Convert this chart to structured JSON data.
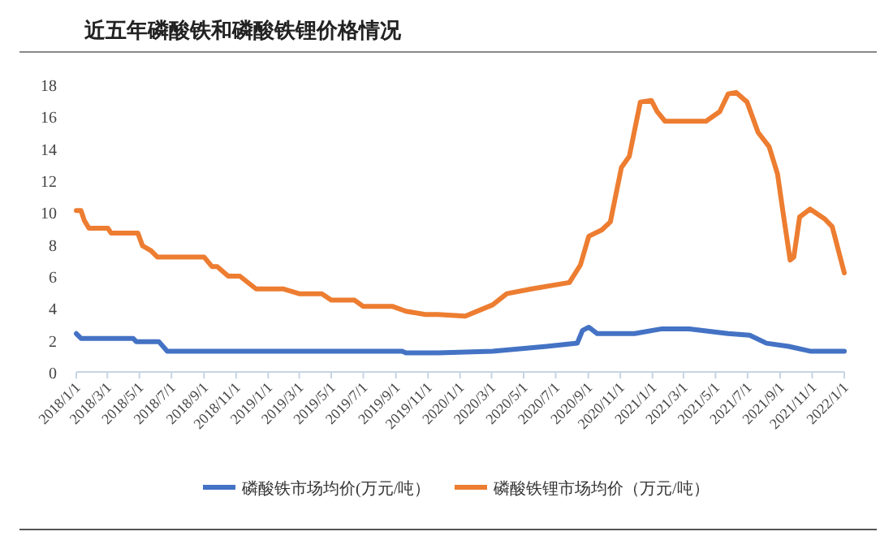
{
  "chart_data": {
    "type": "line",
    "title": "近五年磷酸铁和磷酸铁锂价格情况",
    "legend": "bottom",
    "xlim": [
      "2018-01-01",
      "2022-01-01"
    ],
    "ylim": [
      0,
      18
    ],
    "yticks": [
      0,
      2,
      4,
      6,
      8,
      10,
      12,
      14,
      16,
      18
    ],
    "xticks": [
      {
        "value": "2018-01-01",
        "label": "2018/1/1"
      },
      {
        "value": "2018-03-01",
        "label": "2018/3/1"
      },
      {
        "value": "2018-05-01",
        "label": "2018/5/1"
      },
      {
        "value": "2018-07-01",
        "label": "2018/7/1"
      },
      {
        "value": "2018-09-01",
        "label": "2018/9/1"
      },
      {
        "value": "2018-11-01",
        "label": "2018/11/1"
      },
      {
        "value": "2019-01-01",
        "label": "2019/1/1"
      },
      {
        "value": "2019-03-01",
        "label": "2019/3/1"
      },
      {
        "value": "2019-05-01",
        "label": "2019/5/1"
      },
      {
        "value": "2019-07-01",
        "label": "2019/7/1"
      },
      {
        "value": "2019-09-01",
        "label": "2019/9/1"
      },
      {
        "value": "2019-11-01",
        "label": "2019/11/1"
      },
      {
        "value": "2020-01-01",
        "label": "2020/1/1"
      },
      {
        "value": "2020-03-01",
        "label": "2020/3/1"
      },
      {
        "value": "2020-05-01",
        "label": "2020/5/1"
      },
      {
        "value": "2020-07-01",
        "label": "2020/7/1"
      },
      {
        "value": "2020-09-01",
        "label": "2020/9/1"
      },
      {
        "value": "2020-11-01",
        "label": "2020/11/1"
      },
      {
        "value": "2021-01-01",
        "label": "2021/1/1"
      },
      {
        "value": "2021-03-01",
        "label": "2021/3/1"
      },
      {
        "value": "2021-05-01",
        "label": "2021/5/1"
      },
      {
        "value": "2021-07-01",
        "label": "2021/7/1"
      },
      {
        "value": "2021-09-01",
        "label": "2021/9/1"
      },
      {
        "value": "2021-11-01",
        "label": "2021/11/1"
      },
      {
        "value": "2022-01-01",
        "label": "2022/1/1"
      }
    ],
    "series": [
      {
        "name": "磷酸铁市场均价(万元/吨）",
        "color": "#4472c4",
        "x": [
          "2018-01-01",
          "2018-01-10",
          "2018-04-19",
          "2018-04-25",
          "2018-06-07",
          "2018-06-23",
          "2019-09-13",
          "2019-09-20",
          "2019-11-20",
          "2020-03-03",
          "2020-06-14",
          "2020-08-11",
          "2020-08-21",
          "2020-09-02",
          "2020-09-18",
          "2020-11-28",
          "2021-01-19",
          "2021-03-12",
          "2021-05-25",
          "2021-07-05",
          "2021-08-06",
          "2021-09-17",
          "2021-10-28",
          "2022-01-01"
        ],
        "values": [
          2.4,
          2.1,
          2.1,
          1.9,
          1.9,
          1.3,
          1.3,
          1.2,
          1.2,
          1.3,
          1.6,
          1.8,
          2.6,
          2.8,
          2.4,
          2.4,
          2.7,
          2.7,
          2.4,
          2.3,
          1.8,
          1.6,
          1.3,
          1.3
        ]
      },
      {
        "name": "磷酸铁锂市场均价（万元/吨）",
        "color": "#ed7d31",
        "x": [
          "2018-01-01",
          "2018-01-10",
          "2018-01-16",
          "2018-01-25",
          "2018-03-02",
          "2018-03-08",
          "2018-04-28",
          "2018-05-07",
          "2018-05-23",
          "2018-06-04",
          "2018-09-01",
          "2018-09-16",
          "2018-09-26",
          "2018-10-17",
          "2018-11-08",
          "2018-12-09",
          "2019-01-29",
          "2019-03-01",
          "2019-04-13",
          "2019-05-01",
          "2019-06-14",
          "2019-07-01",
          "2019-08-26",
          "2019-09-20",
          "2019-10-27",
          "2019-11-20",
          "2020-01-11",
          "2020-03-03",
          "2020-03-30",
          "2020-05-16",
          "2020-07-27",
          "2020-08-17",
          "2020-09-02",
          "2020-09-27",
          "2020-10-13",
          "2020-11-03",
          "2020-11-18",
          "2020-12-09",
          "2020-12-30",
          "2021-01-10",
          "2021-01-25",
          "2021-04-13",
          "2021-05-09",
          "2021-05-25",
          "2021-06-09",
          "2021-06-30",
          "2021-07-21",
          "2021-08-11",
          "2021-08-27",
          "2021-09-06",
          "2021-09-20",
          "2021-09-27",
          "2021-10-08",
          "2021-10-28",
          "2021-11-24",
          "2021-12-09",
          "2022-01-01"
        ],
        "values": [
          10.1,
          10.1,
          9.5,
          9.0,
          9.0,
          8.7,
          8.7,
          7.9,
          7.6,
          7.2,
          7.2,
          6.6,
          6.6,
          6.0,
          6.0,
          5.2,
          5.2,
          4.9,
          4.9,
          4.5,
          4.5,
          4.1,
          4.1,
          3.8,
          3.6,
          3.6,
          3.5,
          4.2,
          4.9,
          5.2,
          5.6,
          6.7,
          8.5,
          8.9,
          9.4,
          12.8,
          13.5,
          16.9,
          17.0,
          16.3,
          15.7,
          15.7,
          16.3,
          17.4,
          17.5,
          16.9,
          15.0,
          14.1,
          12.4,
          10.1,
          7.0,
          7.2,
          9.7,
          10.2,
          9.6,
          9.1,
          6.2
        ]
      }
    ]
  }
}
